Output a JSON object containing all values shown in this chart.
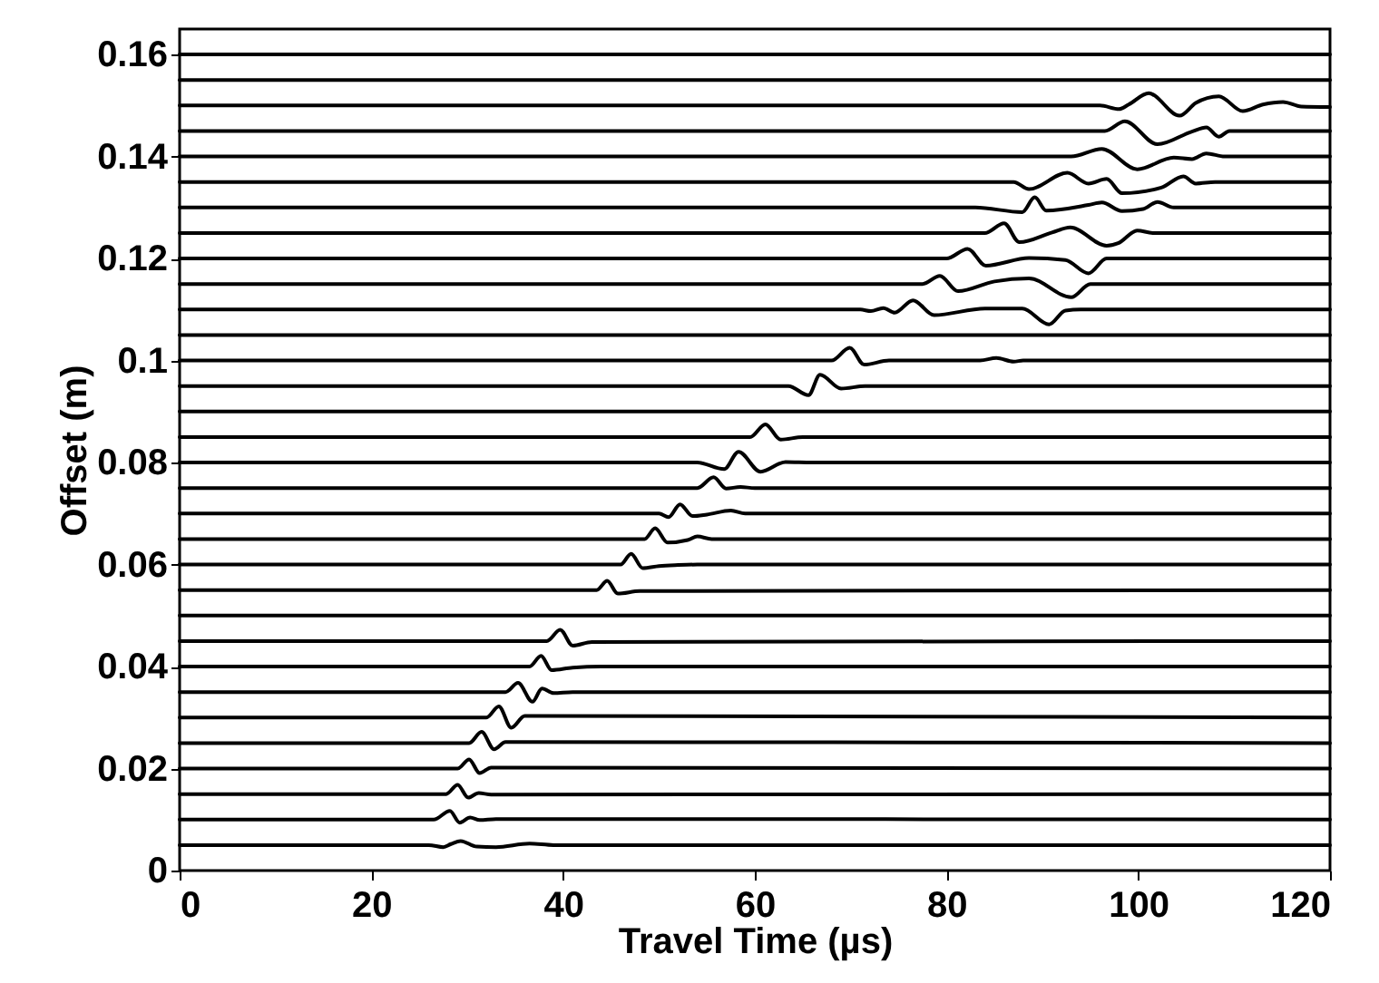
{
  "chart_data": {
    "type": "line",
    "xlabel": "Travel Time (µs)",
    "ylabel": "Offset (m)",
    "xlim": [
      0,
      120
    ],
    "xticks": [
      0,
      20,
      40,
      60,
      80,
      100,
      120
    ],
    "ylim": [
      0,
      0.165
    ],
    "yticks": [
      0,
      0.02,
      0.04,
      0.06,
      0.08,
      0.1,
      0.12,
      0.14,
      0.16
    ],
    "grid": false,
    "marker": "none",
    "line_style": "solid",
    "series": [
      {
        "color": "#000000",
        "x": [
          0,
          26,
          27.5,
          28.3,
          29.3,
          31,
          33,
          36.5,
          39,
          120
        ],
        "values": [
          0.005,
          0.005,
          0.0046,
          0.0052,
          0.0058,
          0.0047,
          0.0046,
          0.0053,
          0.005,
          0.005
        ]
      },
      {
        "color": "#000000",
        "x": [
          0,
          26.5,
          28.2,
          29.2,
          30.3,
          31.3,
          33,
          120
        ],
        "values": [
          0.01,
          0.01,
          0.0117,
          0.0094,
          0.0104,
          0.0099,
          0.0101,
          0.01
        ]
      },
      {
        "color": "#000000",
        "x": [
          0,
          27.8,
          29,
          30.1,
          31.2,
          32.5,
          120
        ],
        "values": [
          0.015,
          0.015,
          0.0168,
          0.0143,
          0.0152,
          0.0149,
          0.015
        ]
      },
      {
        "color": "#000000",
        "x": [
          0,
          29,
          30.2,
          31.3,
          32.5,
          120
        ],
        "values": [
          0.02,
          0.02,
          0.0218,
          0.0191,
          0.0202,
          0.02
        ]
      },
      {
        "color": "#000000",
        "x": [
          0,
          30.2,
          31.5,
          32.8,
          34,
          120
        ],
        "values": [
          0.025,
          0.025,
          0.0272,
          0.0238,
          0.0252,
          0.025
        ]
      },
      {
        "color": "#000000",
        "x": [
          0,
          32,
          33.3,
          34.6,
          36,
          120
        ],
        "values": [
          0.03,
          0.03,
          0.0322,
          0.028,
          0.0303,
          0.03
        ]
      },
      {
        "color": "#000000",
        "x": [
          0,
          34,
          35.3,
          36.8,
          37.8,
          39,
          41,
          120
        ],
        "values": [
          0.035,
          0.035,
          0.0368,
          0.0331,
          0.0357,
          0.0348,
          0.035,
          0.035
        ]
      },
      {
        "color": "#000000",
        "x": [
          0,
          36.5,
          37.7,
          38.8,
          41,
          44,
          120
        ],
        "values": [
          0.04,
          0.04,
          0.0421,
          0.0393,
          0.0398,
          0.04,
          0.04
        ]
      },
      {
        "color": "#000000",
        "x": [
          0,
          38.3,
          39.7,
          41,
          43,
          120
        ],
        "values": [
          0.045,
          0.045,
          0.0472,
          0.0441,
          0.0448,
          0.045
        ]
      },
      {
        "color": "#000000",
        "x": [
          0,
          120
        ],
        "values": [
          0.05,
          0.05
        ]
      },
      {
        "color": "#000000",
        "x": [
          0,
          43.5,
          44.6,
          45.7,
          48,
          120
        ],
        "values": [
          0.055,
          0.055,
          0.0568,
          0.0543,
          0.0548,
          0.055
        ]
      },
      {
        "color": "#000000",
        "x": [
          0,
          46,
          47.1,
          48.3,
          50,
          52,
          54,
          120
        ],
        "values": [
          0.06,
          0.06,
          0.0621,
          0.0593,
          0.0597,
          0.0599,
          0.06,
          0.06
        ]
      },
      {
        "color": "#000000",
        "x": [
          0,
          48.5,
          49.6,
          50.9,
          53,
          54,
          55.5,
          120
        ],
        "values": [
          0.065,
          0.065,
          0.0671,
          0.0643,
          0.0648,
          0.0655,
          0.065,
          0.065
        ]
      },
      {
        "color": "#000000",
        "x": [
          0,
          50,
          51,
          52.2,
          53.5,
          55,
          57.5,
          59,
          120
        ],
        "values": [
          0.07,
          0.07,
          0.0693,
          0.0718,
          0.0695,
          0.0698,
          0.0706,
          0.07,
          0.07
        ]
      },
      {
        "color": "#000000",
        "x": [
          0,
          54,
          55.7,
          57,
          58.5,
          60,
          120
        ],
        "values": [
          0.075,
          0.075,
          0.0771,
          0.0749,
          0.0752,
          0.075,
          0.075
        ]
      },
      {
        "color": "#000000",
        "x": [
          0,
          54,
          56.8,
          58.3,
          60.6,
          63.2,
          66,
          120
        ],
        "values": [
          0.08,
          0.08,
          0.0787,
          0.0821,
          0.0782,
          0.0801,
          0.08,
          0.08
        ]
      },
      {
        "color": "#000000",
        "x": [
          0,
          59.5,
          61.1,
          62.7,
          65,
          120
        ],
        "values": [
          0.085,
          0.085,
          0.0875,
          0.0845,
          0.085,
          0.085
        ]
      },
      {
        "color": "#000000",
        "x": [
          0,
          120
        ],
        "values": [
          0.09,
          0.09
        ]
      },
      {
        "color": "#000000",
        "x": [
          0,
          63.5,
          65.6,
          66.8,
          69,
          71.5,
          120
        ],
        "values": [
          0.095,
          0.095,
          0.0932,
          0.0972,
          0.0945,
          0.095,
          0.095
        ]
      },
      {
        "color": "#000000",
        "x": [
          0,
          68,
          69.9,
          71.4,
          74,
          83.5,
          85.2,
          87,
          88,
          120
        ],
        "values": [
          0.1,
          0.1,
          0.1025,
          0.0992,
          0.1,
          0.1,
          0.1005,
          0.0998,
          0.1,
          0.1
        ]
      },
      {
        "color": "#000000",
        "x": [
          0,
          120
        ],
        "values": [
          0.105,
          0.105
        ]
      },
      {
        "color": "#000000",
        "x": [
          0,
          71,
          72.1,
          73.4,
          74.6,
          76.5,
          78.7,
          84,
          87.9,
          90.7,
          92.4,
          94,
          120
        ],
        "values": [
          0.11,
          0.11,
          0.1097,
          0.1103,
          0.1094,
          0.1118,
          0.1089,
          0.1102,
          0.1102,
          0.1071,
          0.1098,
          0.11,
          0.11
        ]
      },
      {
        "color": "#000000",
        "x": [
          0,
          77.5,
          79.3,
          81.2,
          85,
          88.6,
          93,
          95,
          120
        ],
        "values": [
          0.115,
          0.115,
          0.1166,
          0.1136,
          0.1155,
          0.1161,
          0.1124,
          0.115,
          0.115
        ]
      },
      {
        "color": "#000000",
        "x": [
          0,
          80,
          82.2,
          84.1,
          88.6,
          92.4,
          94.8,
          96.7,
          120
        ],
        "values": [
          0.12,
          0.12,
          0.1219,
          0.1186,
          0.1201,
          0.1197,
          0.1171,
          0.12,
          0.12
        ]
      },
      {
        "color": "#000000",
        "x": [
          0,
          84,
          86,
          87.6,
          91,
          92.9,
          96.7,
          97.9,
          99.9,
          101.5,
          120
        ],
        "values": [
          0.125,
          0.125,
          0.1269,
          0.1232,
          0.1251,
          0.1261,
          0.1225,
          0.123,
          0.1255,
          0.125,
          0.125
        ]
      },
      {
        "color": "#000000",
        "x": [
          0,
          83,
          87.9,
          89.2,
          90.4,
          94.8,
          96.2,
          98.3,
          100.5,
          102,
          103.7,
          120
        ],
        "values": [
          0.13,
          0.13,
          0.1291,
          0.132,
          0.1294,
          0.1305,
          0.131,
          0.1293,
          0.1297,
          0.1311,
          0.13,
          0.13
        ]
      },
      {
        "color": "#000000",
        "x": [
          0,
          87,
          88.6,
          92.6,
          94.8,
          96.7,
          98.3,
          102.4,
          104.7,
          106,
          108,
          120
        ],
        "values": [
          0.135,
          0.135,
          0.1336,
          0.1368,
          0.1347,
          0.1356,
          0.1328,
          0.1339,
          0.1361,
          0.1347,
          0.135,
          0.135
        ]
      },
      {
        "color": "#000000",
        "x": [
          0,
          93,
          96.2,
          99.9,
          103.7,
          105.6,
          107.1,
          109,
          120
        ],
        "values": [
          0.14,
          0.14,
          0.1415,
          0.1375,
          0.1398,
          0.1395,
          0.1406,
          0.14,
          0.14
        ]
      },
      {
        "color": "#000000",
        "x": [
          0,
          96.5,
          98.6,
          102,
          105.6,
          107.1,
          108.4,
          109.5,
          120
        ],
        "values": [
          0.145,
          0.145,
          0.1469,
          0.1424,
          0.1449,
          0.1457,
          0.1439,
          0.145,
          0.145
        ]
      },
      {
        "color": "#000000",
        "x": [
          0,
          96,
          98,
          99,
          101.1,
          104.3,
          106,
          108.4,
          110.9,
          113,
          115.1,
          117,
          120
        ],
        "values": [
          0.15,
          0.15,
          0.1493,
          0.1502,
          0.1524,
          0.148,
          0.1505,
          0.1518,
          0.1489,
          0.1502,
          0.1507,
          0.1498,
          0.1497
        ]
      },
      {
        "color": "#000000",
        "x": [
          0,
          120
        ],
        "values": [
          0.155,
          0.155
        ]
      },
      {
        "color": "#000000",
        "x": [
          0,
          120
        ],
        "values": [
          0.16,
          0.16
        ]
      }
    ]
  }
}
